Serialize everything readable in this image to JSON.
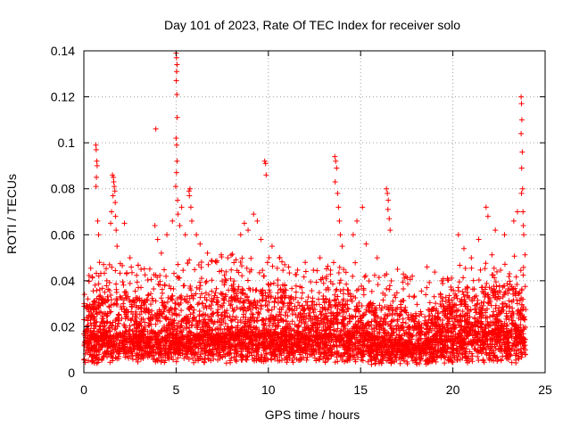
{
  "chart_data": {
    "type": "scatter",
    "title": "Day 101 of 2023, Rate Of TEC Index for receiver solo",
    "xlabel": "GPS time / hours",
    "ylabel": "ROTI / TECUs",
    "xlim": [
      0,
      25
    ],
    "ylim": [
      0,
      0.14
    ],
    "xticks": [
      0,
      5,
      10,
      15,
      20,
      25
    ],
    "xtick_labels": [
      "0",
      "5",
      "10",
      "15",
      "20",
      "25"
    ],
    "yticks": [
      0,
      0.02,
      0.04,
      0.06,
      0.08,
      0.1,
      0.12,
      0.14
    ],
    "ytick_labels": [
      "0",
      "0.02",
      "0.04",
      "0.06",
      "0.08",
      "0.1",
      "0.12",
      "0.14"
    ],
    "grid": true,
    "marker": "plus",
    "color": "#ff0000",
    "bulk_envelope": {
      "x": [
        0,
        2,
        4,
        6,
        8,
        10,
        12,
        14,
        16,
        18,
        20,
        22,
        24
      ],
      "y_min": [
        0.004,
        0.004,
        0.004,
        0.004,
        0.004,
        0.004,
        0.004,
        0.004,
        0.003,
        0.003,
        0.004,
        0.004,
        0.004
      ],
      "y_median": [
        0.016,
        0.016,
        0.015,
        0.016,
        0.017,
        0.017,
        0.016,
        0.017,
        0.015,
        0.013,
        0.016,
        0.018,
        0.018
      ],
      "y_dense_top": [
        0.03,
        0.033,
        0.03,
        0.034,
        0.036,
        0.036,
        0.03,
        0.034,
        0.03,
        0.026,
        0.03,
        0.036,
        0.037
      ]
    },
    "points": [
      {
        "x": 0.65,
        "y": 0.099
      },
      {
        "x": 0.67,
        "y": 0.097
      },
      {
        "x": 0.7,
        "y": 0.092
      },
      {
        "x": 0.72,
        "y": 0.09
      },
      {
        "x": 0.68,
        "y": 0.085
      },
      {
        "x": 0.66,
        "y": 0.081
      },
      {
        "x": 0.75,
        "y": 0.066
      },
      {
        "x": 0.8,
        "y": 0.06
      },
      {
        "x": 0.85,
        "y": 0.048
      },
      {
        "x": 1.55,
        "y": 0.086
      },
      {
        "x": 1.6,
        "y": 0.085
      },
      {
        "x": 1.62,
        "y": 0.083
      },
      {
        "x": 1.65,
        "y": 0.081
      },
      {
        "x": 1.68,
        "y": 0.079
      },
      {
        "x": 1.58,
        "y": 0.077
      },
      {
        "x": 1.7,
        "y": 0.074
      },
      {
        "x": 1.5,
        "y": 0.07
      },
      {
        "x": 1.72,
        "y": 0.068
      },
      {
        "x": 1.45,
        "y": 0.065
      },
      {
        "x": 1.75,
        "y": 0.062
      },
      {
        "x": 1.8,
        "y": 0.055
      },
      {
        "x": 2.2,
        "y": 0.065
      },
      {
        "x": 2.5,
        "y": 0.05
      },
      {
        "x": 3.1,
        "y": 0.045
      },
      {
        "x": 3.9,
        "y": 0.106
      },
      {
        "x": 3.85,
        "y": 0.064
      },
      {
        "x": 4.0,
        "y": 0.058
      },
      {
        "x": 4.2,
        "y": 0.052
      },
      {
        "x": 4.5,
        "y": 0.06
      },
      {
        "x": 4.8,
        "y": 0.066
      },
      {
        "x": 5.0,
        "y": 0.139
      },
      {
        "x": 5.02,
        "y": 0.137
      },
      {
        "x": 5.05,
        "y": 0.134
      },
      {
        "x": 5.03,
        "y": 0.131
      },
      {
        "x": 5.01,
        "y": 0.127
      },
      {
        "x": 5.04,
        "y": 0.121
      },
      {
        "x": 5.06,
        "y": 0.111
      },
      {
        "x": 5.0,
        "y": 0.102
      },
      {
        "x": 5.03,
        "y": 0.099
      },
      {
        "x": 5.05,
        "y": 0.092
      },
      {
        "x": 5.02,
        "y": 0.087
      },
      {
        "x": 4.98,
        "y": 0.081
      },
      {
        "x": 5.08,
        "y": 0.075
      },
      {
        "x": 5.1,
        "y": 0.069
      },
      {
        "x": 5.2,
        "y": 0.064
      },
      {
        "x": 5.3,
        "y": 0.072
      },
      {
        "x": 5.5,
        "y": 0.06
      },
      {
        "x": 5.7,
        "y": 0.079
      },
      {
        "x": 5.75,
        "y": 0.08
      },
      {
        "x": 5.72,
        "y": 0.077
      },
      {
        "x": 5.8,
        "y": 0.072
      },
      {
        "x": 5.85,
        "y": 0.066
      },
      {
        "x": 6.1,
        "y": 0.06
      },
      {
        "x": 6.3,
        "y": 0.056
      },
      {
        "x": 6.7,
        "y": 0.052
      },
      {
        "x": 7.2,
        "y": 0.048
      },
      {
        "x": 7.8,
        "y": 0.05
      },
      {
        "x": 8.5,
        "y": 0.06
      },
      {
        "x": 8.7,
        "y": 0.065
      },
      {
        "x": 8.9,
        "y": 0.062
      },
      {
        "x": 9.2,
        "y": 0.069
      },
      {
        "x": 9.4,
        "y": 0.066
      },
      {
        "x": 9.6,
        "y": 0.058
      },
      {
        "x": 9.8,
        "y": 0.092
      },
      {
        "x": 9.85,
        "y": 0.091
      },
      {
        "x": 9.88,
        "y": 0.086
      },
      {
        "x": 10.2,
        "y": 0.055
      },
      {
        "x": 10.6,
        "y": 0.05
      },
      {
        "x": 11.1,
        "y": 0.046
      },
      {
        "x": 12.0,
        "y": 0.048
      },
      {
        "x": 12.8,
        "y": 0.05
      },
      {
        "x": 13.6,
        "y": 0.094
      },
      {
        "x": 13.65,
        "y": 0.092
      },
      {
        "x": 13.7,
        "y": 0.089
      },
      {
        "x": 13.62,
        "y": 0.083
      },
      {
        "x": 13.75,
        "y": 0.078
      },
      {
        "x": 13.8,
        "y": 0.072
      },
      {
        "x": 13.85,
        "y": 0.066
      },
      {
        "x": 13.9,
        "y": 0.06
      },
      {
        "x": 14.0,
        "y": 0.055
      },
      {
        "x": 14.6,
        "y": 0.06
      },
      {
        "x": 14.8,
        "y": 0.066
      },
      {
        "x": 15.1,
        "y": 0.072
      },
      {
        "x": 15.3,
        "y": 0.056
      },
      {
        "x": 15.9,
        "y": 0.05
      },
      {
        "x": 16.4,
        "y": 0.08
      },
      {
        "x": 16.45,
        "y": 0.078
      },
      {
        "x": 16.5,
        "y": 0.075
      },
      {
        "x": 16.48,
        "y": 0.071
      },
      {
        "x": 16.55,
        "y": 0.067
      },
      {
        "x": 16.6,
        "y": 0.062
      },
      {
        "x": 17.0,
        "y": 0.045
      },
      {
        "x": 17.8,
        "y": 0.042
      },
      {
        "x": 18.6,
        "y": 0.046
      },
      {
        "x": 19.4,
        "y": 0.04
      },
      {
        "x": 20.3,
        "y": 0.06
      },
      {
        "x": 20.6,
        "y": 0.054
      },
      {
        "x": 21.0,
        "y": 0.05
      },
      {
        "x": 21.4,
        "y": 0.058
      },
      {
        "x": 21.8,
        "y": 0.072
      },
      {
        "x": 21.9,
        "y": 0.068
      },
      {
        "x": 22.3,
        "y": 0.062
      },
      {
        "x": 22.8,
        "y": 0.06
      },
      {
        "x": 23.3,
        "y": 0.066
      },
      {
        "x": 23.5,
        "y": 0.07
      },
      {
        "x": 23.7,
        "y": 0.12
      },
      {
        "x": 23.72,
        "y": 0.117
      },
      {
        "x": 23.74,
        "y": 0.11
      },
      {
        "x": 23.7,
        "y": 0.104
      },
      {
        "x": 23.76,
        "y": 0.096
      },
      {
        "x": 23.73,
        "y": 0.089
      },
      {
        "x": 23.78,
        "y": 0.08
      },
      {
        "x": 23.72,
        "y": 0.078
      },
      {
        "x": 23.8,
        "y": 0.07
      },
      {
        "x": 23.82,
        "y": 0.064
      },
      {
        "x": 23.84,
        "y": 0.06
      }
    ]
  }
}
